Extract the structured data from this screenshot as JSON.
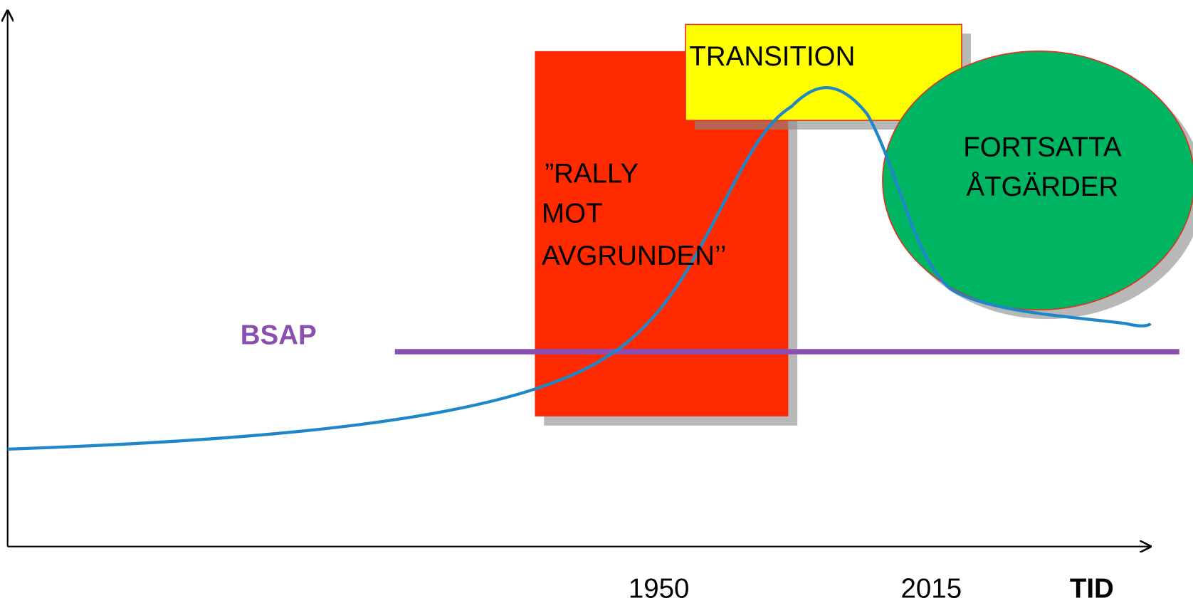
{
  "axis": {
    "x_label": "TID",
    "x_marks": [
      "1950",
      "2015"
    ]
  },
  "reference_line": {
    "label": "BSAP"
  },
  "phases": [
    {
      "lines": [
        "”RALLY",
        "MOT",
        "AVGRUNDEN’’"
      ]
    },
    {
      "lines": [
        "TRANSITION"
      ]
    },
    {
      "lines": [
        "FORTSATTA",
        "ÅTGÄRDER"
      ]
    }
  ]
}
